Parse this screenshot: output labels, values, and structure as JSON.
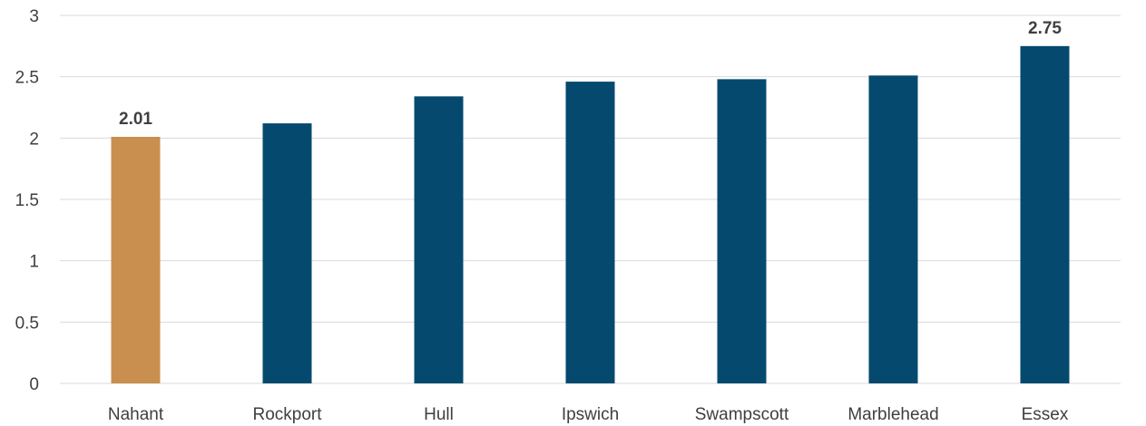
{
  "chart_data": {
    "type": "bar",
    "title": "",
    "xlabel": "",
    "ylabel": "",
    "categories": [
      "Nahant",
      "Rockport",
      "Hull",
      "Ipswich",
      "Swampscott",
      "Marblehead",
      "Essex"
    ],
    "values": [
      2.01,
      2.12,
      2.34,
      2.46,
      2.48,
      2.51,
      2.75
    ],
    "ylim": [
      0,
      3
    ],
    "yticks": [
      "0",
      "0.5",
      "1",
      "1.5",
      "2",
      "2.5",
      "3"
    ],
    "data_labels": [
      {
        "category": "Nahant",
        "text": "2.01"
      },
      {
        "category": "Essex",
        "text": "2.75"
      }
    ],
    "grid": true,
    "legend": "none",
    "colors": {
      "default_bar": "#054a6e",
      "highlight_bar": "#c98f4e",
      "highlight_category": "Nahant"
    }
  }
}
